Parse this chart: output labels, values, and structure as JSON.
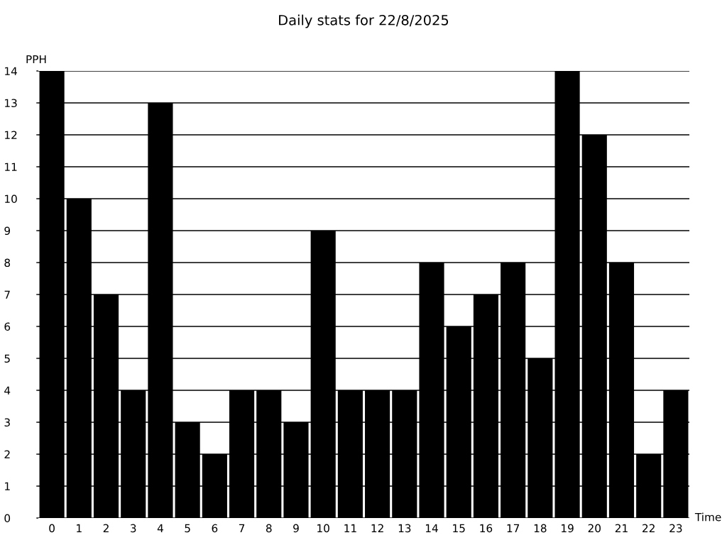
{
  "chart_data": {
    "type": "bar",
    "title": "Daily stats for 22/8/2025",
    "xlabel": "Time",
    "ylabel": "PPH",
    "categories": [
      "0",
      "1",
      "2",
      "3",
      "4",
      "5",
      "6",
      "7",
      "8",
      "9",
      "10",
      "11",
      "12",
      "13",
      "14",
      "15",
      "16",
      "17",
      "18",
      "19",
      "20",
      "21",
      "22",
      "23"
    ],
    "values": [
      14,
      10,
      7,
      4,
      13,
      3,
      2,
      4,
      4,
      3,
      9,
      4,
      4,
      4,
      8,
      6,
      7,
      8,
      5,
      14,
      12,
      8,
      2,
      4
    ],
    "color": "#000000",
    "ylim": [
      0,
      14
    ],
    "yticks": [
      0,
      1,
      2,
      3,
      4,
      5,
      6,
      7,
      8,
      9,
      10,
      11,
      12,
      13,
      14
    ],
    "grid": "y",
    "legend": false
  }
}
